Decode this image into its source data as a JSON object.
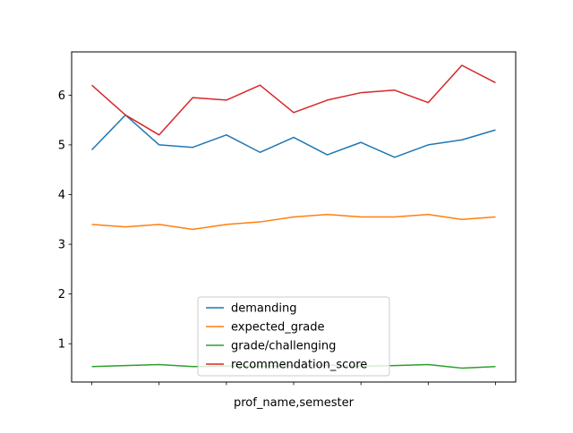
{
  "chart_data": {
    "type": "line",
    "xlabel": "prof_name,semester",
    "ylabel": "",
    "x": [
      0,
      1,
      2,
      3,
      4,
      5,
      6,
      7,
      8,
      9,
      10,
      11,
      12
    ],
    "ylim": [
      0.23,
      6.87
    ],
    "y_ticks": [
      "1",
      "2",
      "3",
      "4",
      "5",
      "6"
    ],
    "x_tick_positions": [
      0,
      2,
      4,
      6,
      8,
      10,
      12
    ],
    "grid": false,
    "legend_position": "lower center",
    "series": [
      {
        "name": "demanding",
        "color": "#1f77b4",
        "values": [
          4.9,
          5.6,
          5.0,
          4.95,
          5.2,
          4.85,
          5.15,
          4.8,
          5.05,
          4.75,
          5.0,
          5.1,
          5.3
        ]
      },
      {
        "name": "expected_grade",
        "color": "#ff7f0e",
        "values": [
          3.4,
          3.35,
          3.4,
          3.3,
          3.4,
          3.45,
          3.55,
          3.6,
          3.55,
          3.55,
          3.6,
          3.5,
          3.55
        ]
      },
      {
        "name": "grade/challenging",
        "color": "#2ca02c",
        "values": [
          0.54,
          0.56,
          0.58,
          0.54,
          0.55,
          0.55,
          0.56,
          0.57,
          0.55,
          0.56,
          0.58,
          0.51,
          0.54
        ]
      },
      {
        "name": "recommendation_score",
        "color": "#d62728",
        "values": [
          6.2,
          5.6,
          5.2,
          5.95,
          5.9,
          6.2,
          5.65,
          5.9,
          6.05,
          6.1,
          5.85,
          6.6,
          6.25
        ]
      }
    ]
  }
}
